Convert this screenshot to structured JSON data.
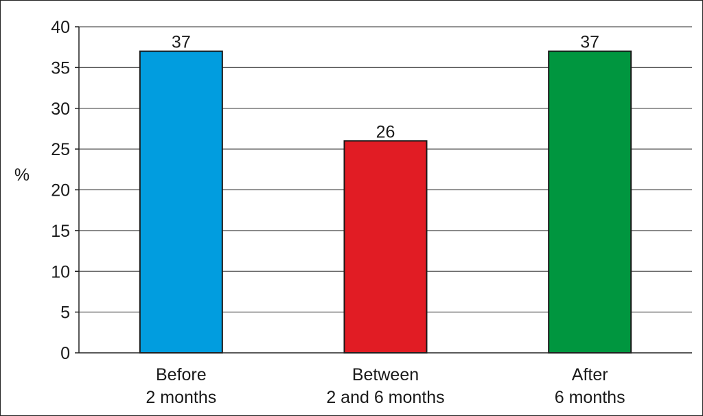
{
  "chart_data": {
    "type": "bar",
    "categories": [
      [
        "Before",
        "2 months"
      ],
      [
        "Between",
        "2 and 6 months"
      ],
      [
        "After",
        "6 months"
      ]
    ],
    "values": [
      37,
      26,
      37
    ],
    "data_labels": [
      "37",
      "26",
      "37"
    ],
    "ylabel": "%",
    "xlabel": "",
    "ylim": [
      0,
      40
    ],
    "yticks": [
      0,
      5,
      10,
      15,
      20,
      25,
      30,
      35,
      40
    ],
    "ytick_labels": [
      "0",
      "5",
      "10",
      "15",
      "20",
      "25",
      "30",
      "35",
      "40"
    ],
    "grid": true,
    "legend": "none",
    "colors": [
      "#019ddf",
      "#e11c24",
      "#00963f"
    ]
  }
}
